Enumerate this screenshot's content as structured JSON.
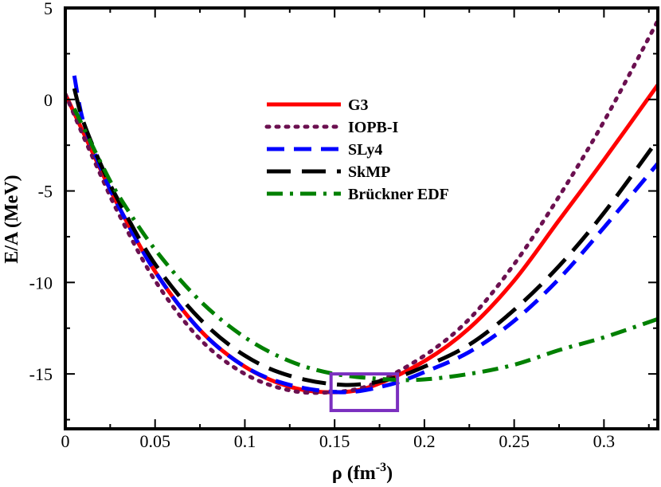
{
  "chart_data": {
    "type": "line",
    "title": "",
    "xlabel": "ρ (fm",
    "xlabel_sup": "-3",
    "xlabel_tail": ")",
    "ylabel": "E/A (MeV)",
    "xlim": [
      0,
      0.33
    ],
    "ylim": [
      -18,
      5
    ],
    "x_ticks": [
      0,
      0.05,
      0.1,
      0.15,
      0.2,
      0.25,
      0.3
    ],
    "x_tick_labels": [
      "0",
      "0.05",
      "0.1",
      "0.15",
      "0.2",
      "0.25",
      "0.3"
    ],
    "y_ticks": [
      5,
      0,
      -5,
      -10,
      -15
    ],
    "y_tick_labels": [
      "5",
      "0",
      "-5",
      "-10",
      "-15"
    ],
    "legend_position": "top-center",
    "series": [
      {
        "name": "G3",
        "color": "#ff0000",
        "dash": "solid",
        "x": [
          0.0,
          0.01,
          0.02,
          0.03,
          0.05,
          0.075,
          0.1,
          0.125,
          0.148,
          0.17,
          0.2,
          0.225,
          0.25,
          0.275,
          0.3,
          0.33
        ],
        "y": [
          0.3,
          -1.8,
          -3.9,
          -5.9,
          -9.4,
          -12.6,
          -14.6,
          -15.7,
          -16.0,
          -15.7,
          -14.3,
          -12.5,
          -9.9,
          -6.6,
          -3.3,
          0.8
        ]
      },
      {
        "name": "IOPB-I",
        "color": "#6b1050",
        "dash": "dotted",
        "x": [
          0.0,
          0.01,
          0.02,
          0.03,
          0.05,
          0.075,
          0.1,
          0.125,
          0.148,
          0.17,
          0.2,
          0.225,
          0.25,
          0.275,
          0.3,
          0.33
        ],
        "y": [
          0.3,
          -2.0,
          -4.2,
          -6.3,
          -9.9,
          -13.1,
          -15.0,
          -15.9,
          -16.0,
          -15.6,
          -14.0,
          -12.0,
          -9.0,
          -5.3,
          -1.2,
          4.3
        ]
      },
      {
        "name": "SLy4",
        "color": "#0000ff",
        "dash": "dashed",
        "x": [
          0.005,
          0.01,
          0.02,
          0.03,
          0.05,
          0.075,
          0.1,
          0.125,
          0.155,
          0.18,
          0.2,
          0.225,
          0.25,
          0.275,
          0.3,
          0.33
        ],
        "y": [
          1.3,
          -1.2,
          -3.8,
          -5.9,
          -9.4,
          -12.6,
          -14.6,
          -15.6,
          -16.0,
          -15.6,
          -14.9,
          -13.8,
          -12.1,
          -9.8,
          -7.0,
          -3.5
        ]
      },
      {
        "name": "SkMP",
        "color": "#000000",
        "dash": "long-dashed",
        "x": [
          0.005,
          0.01,
          0.02,
          0.03,
          0.05,
          0.075,
          0.1,
          0.125,
          0.155,
          0.18,
          0.2,
          0.225,
          0.25,
          0.275,
          0.3,
          0.33
        ],
        "y": [
          0.6,
          -1.2,
          -3.6,
          -5.6,
          -9.0,
          -12.0,
          -14.0,
          -15.1,
          -15.6,
          -15.3,
          -14.6,
          -13.4,
          -11.5,
          -9.1,
          -6.2,
          -2.2
        ]
      },
      {
        "name": "Brückner EDF",
        "color": "#008000",
        "dash": "dash-dot",
        "x": [
          0.005,
          0.01,
          0.02,
          0.03,
          0.05,
          0.075,
          0.1,
          0.125,
          0.15,
          0.18,
          0.2,
          0.225,
          0.25,
          0.275,
          0.3,
          0.33
        ],
        "y": [
          -0.5,
          -1.5,
          -3.5,
          -5.3,
          -8.2,
          -11.0,
          -13.0,
          -14.3,
          -15.0,
          -15.3,
          -15.3,
          -15.0,
          -14.5,
          -13.7,
          -13.0,
          -12.0
        ]
      }
    ],
    "annotation_box": {
      "x_range": [
        0.148,
        0.185
      ],
      "y_range": [
        -17.0,
        -15.0
      ],
      "color": "#7b2fbf"
    }
  }
}
